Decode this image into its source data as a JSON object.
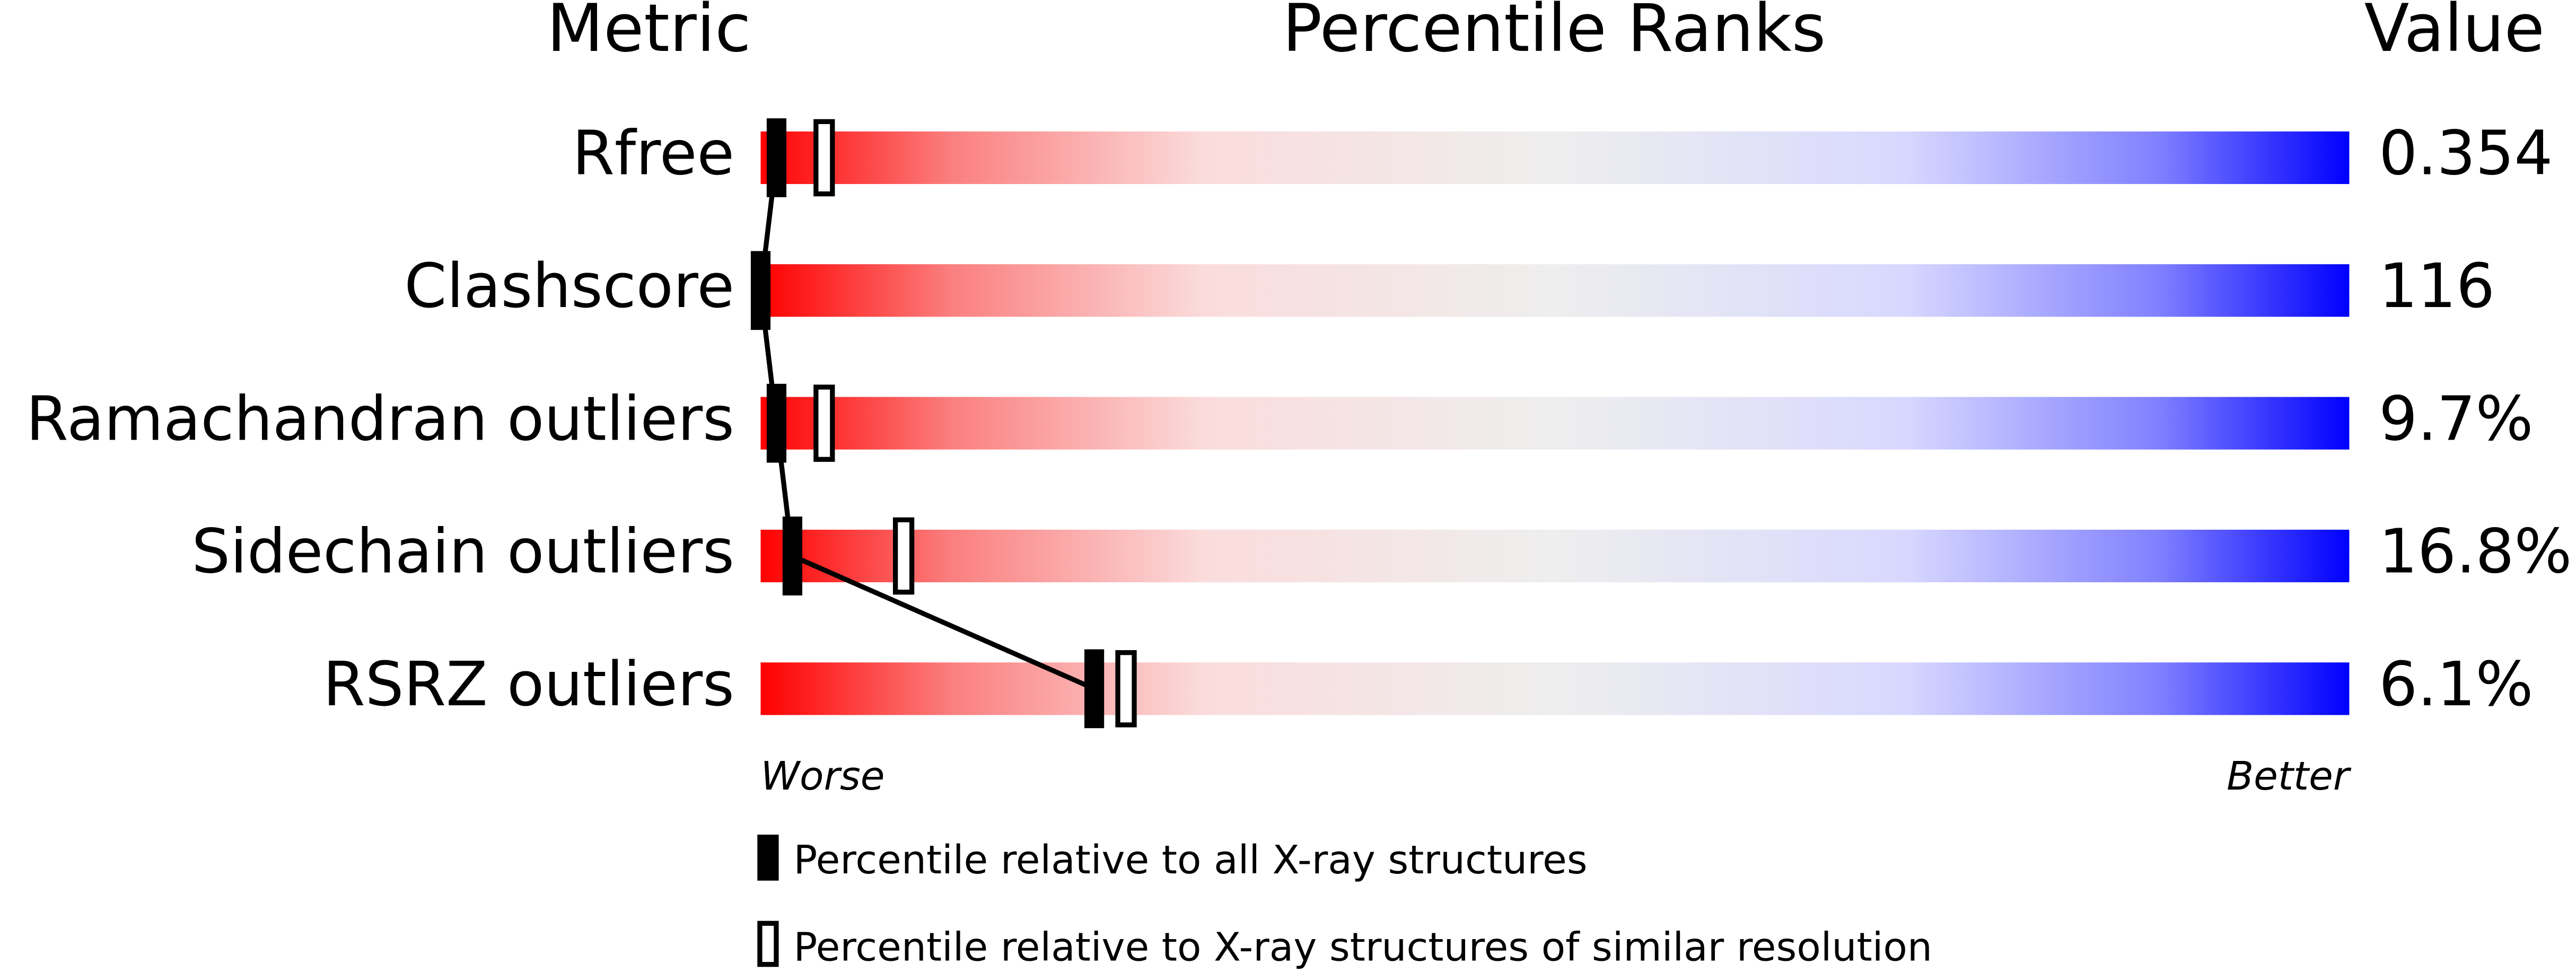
{
  "chart_data": {
    "type": "percentile",
    "headers": [
      "Metric",
      "Percentile Ranks",
      "Value"
    ],
    "categories": [
      "Rfree",
      "Clashscore",
      "Ramachandran outliers",
      "Sidechain outliers",
      "RSRZ outliers"
    ],
    "metric_values": [
      "0.354",
      "116",
      "9.7%",
      "16.8%",
      "6.1%"
    ],
    "series": [
      {
        "name": "Percentile relative to all X-ray structures",
        "color": "#000000",
        "values": [
          1,
          0,
          1,
          2,
          21
        ]
      },
      {
        "name": "Percentile relative to X-ray structures of similar resolution",
        "color": "#000000",
        "values": [
          4,
          null,
          4,
          9,
          23
        ]
      }
    ],
    "xlim": [
      0,
      100
    ],
    "axis_labels": [
      "Worse",
      "Better"
    ]
  }
}
